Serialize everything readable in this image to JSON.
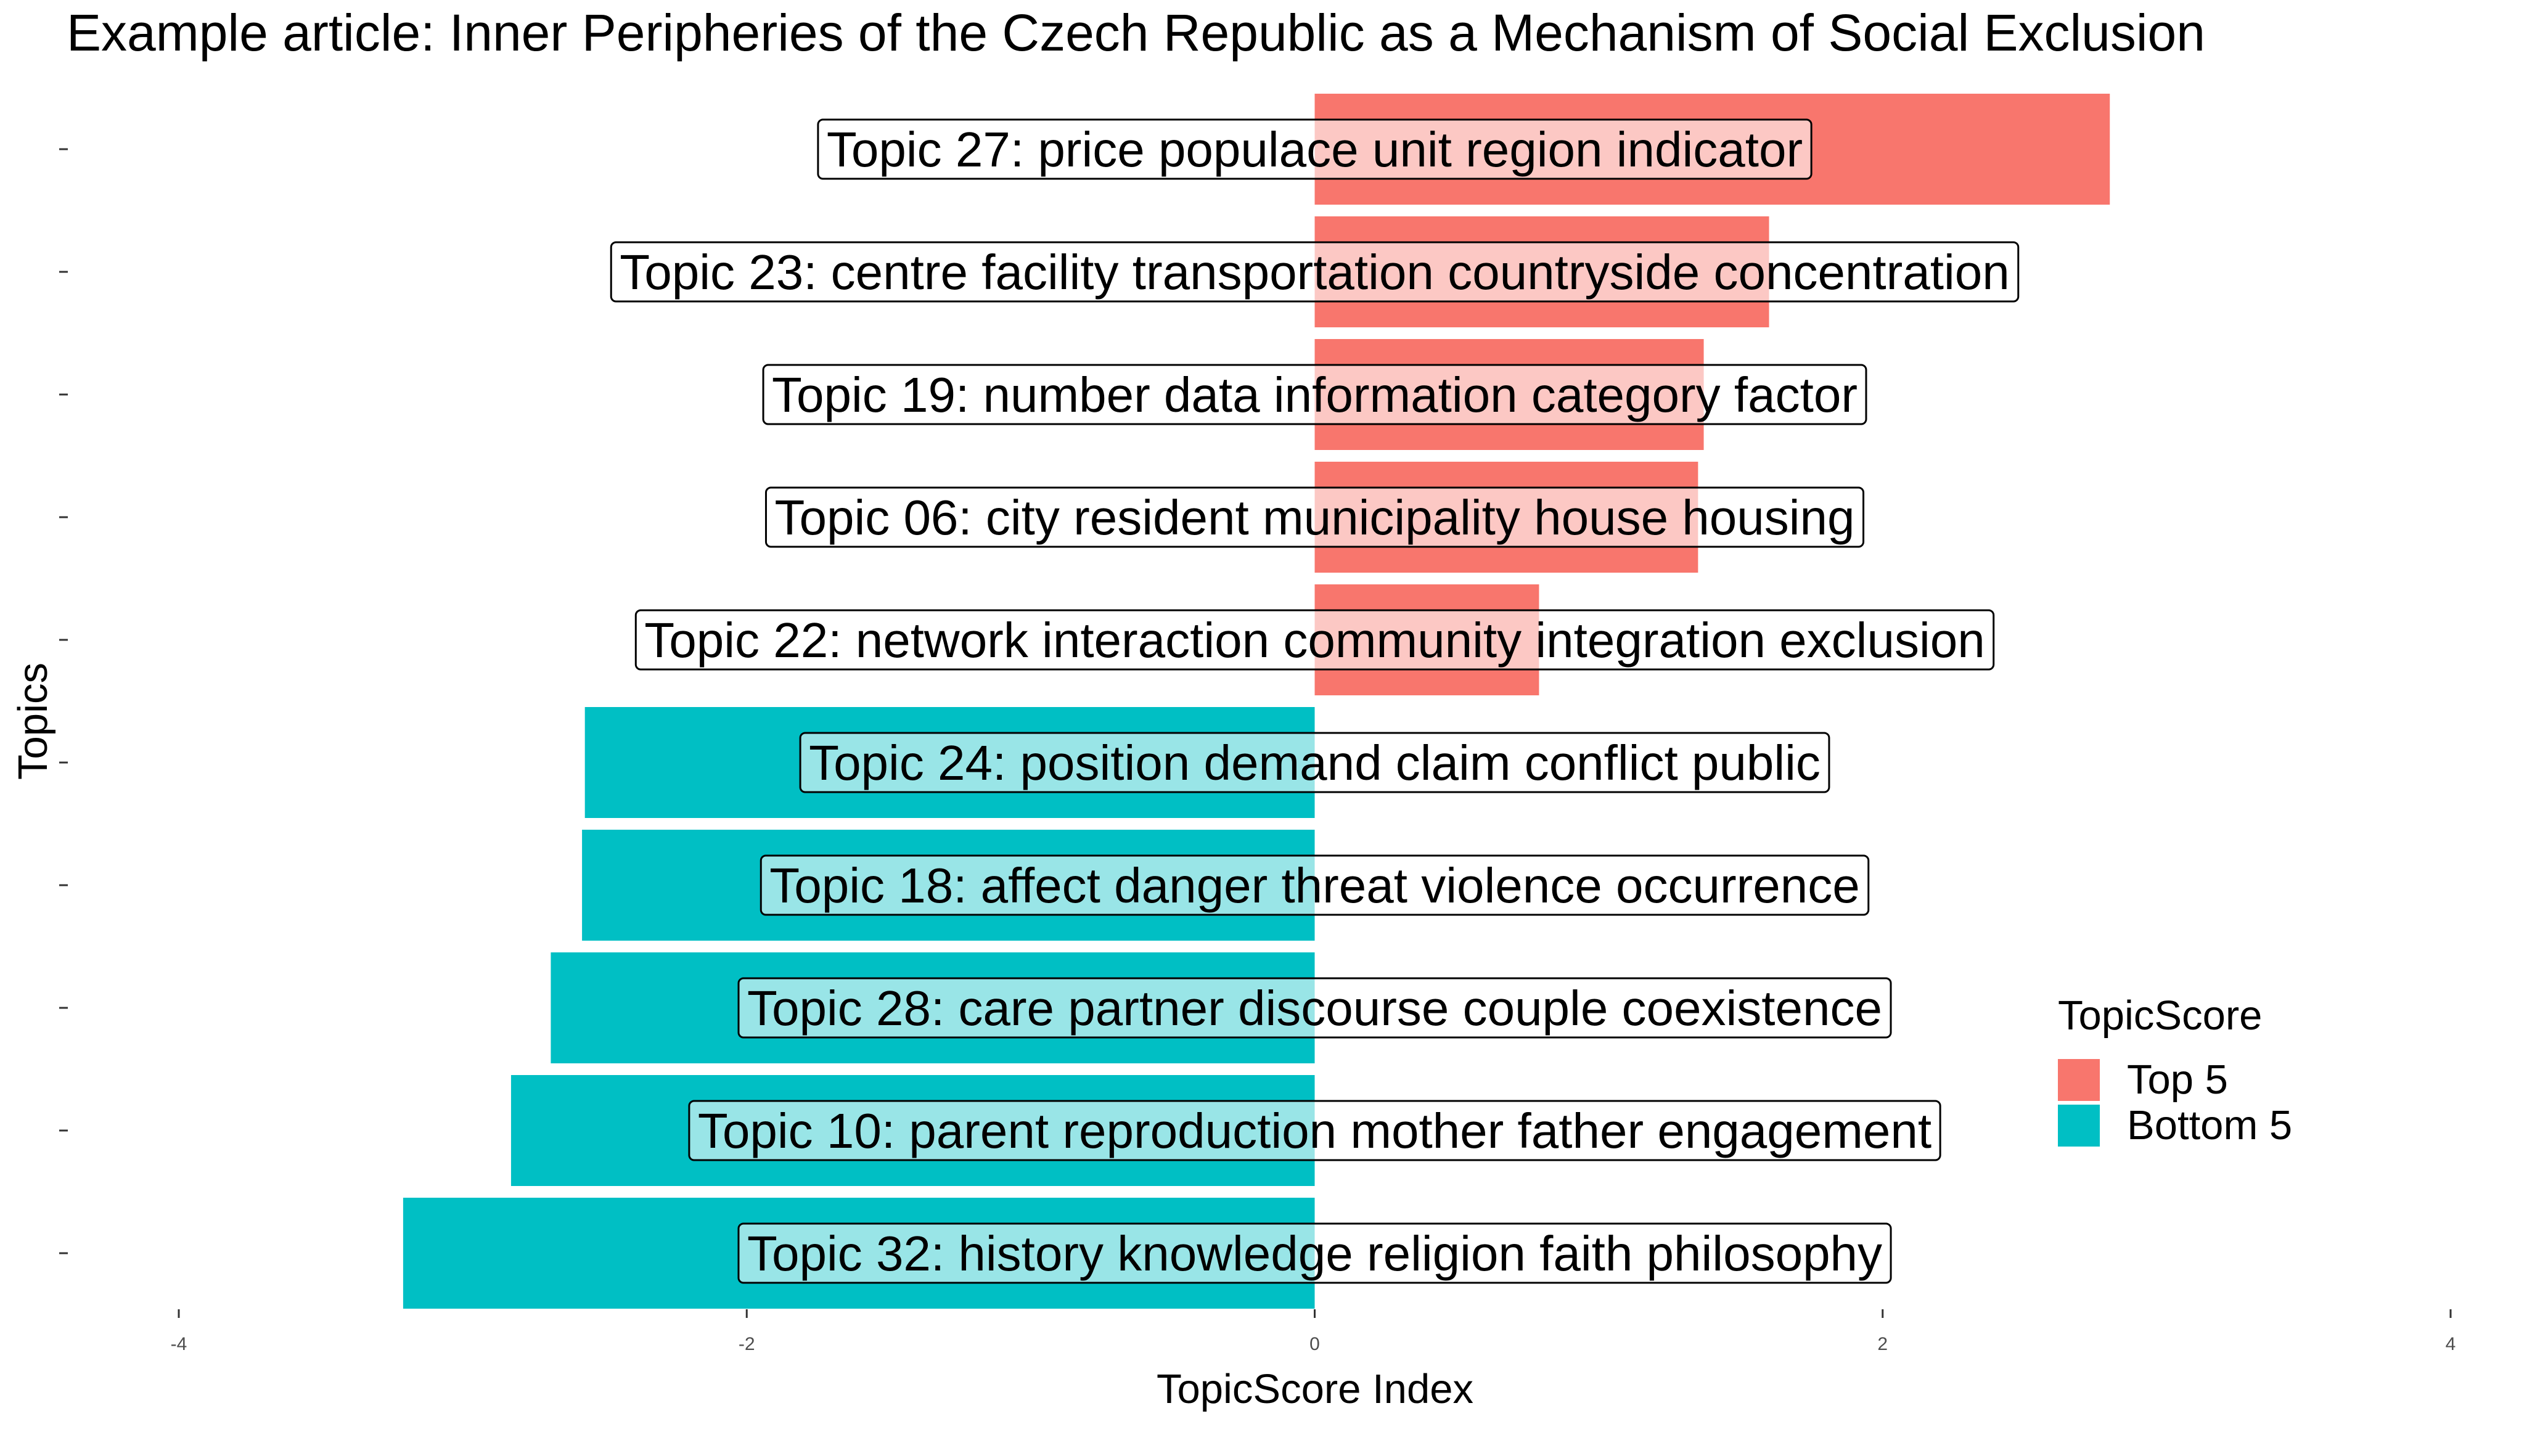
{
  "chart_data": {
    "type": "bar",
    "orientation": "horizontal",
    "title": "Example article: Inner Peripheries of the Czech Republic as a Mechanism of Social Exclusion",
    "xlabel": "TopicScore Index",
    "ylabel": "Topics",
    "xlim": [
      -4,
      4
    ],
    "xticks": [
      "-4",
      "-2",
      "0",
      "2",
      "4"
    ],
    "grid": false,
    "legend": {
      "title": "TopicScore",
      "placement": "right",
      "entries": [
        {
          "label": "Top 5",
          "color": "#F8766D"
        },
        {
          "label": "Bottom 5",
          "color": "#00BFC4"
        }
      ]
    },
    "bars": [
      {
        "label": "Topic 27: price populace unit region indicator",
        "value": 2.8,
        "group": "Top 5"
      },
      {
        "label": "Topic 23: centre facility transportation countryside concentration",
        "value": 1.6,
        "group": "Top 5"
      },
      {
        "label": "Topic 19: number data information category factor",
        "value": 1.37,
        "group": "Top 5"
      },
      {
        "label": "Topic 06: city resident municipality house housing",
        "value": 1.35,
        "group": "Top 5"
      },
      {
        "label": "Topic 22: network interaction community integration exclusion",
        "value": 0.79,
        "group": "Top 5"
      },
      {
        "label": "Topic 24: position demand claim conflict public",
        "value": -2.57,
        "group": "Bottom 5"
      },
      {
        "label": "Topic 18: affect danger threat violence occurrence",
        "value": -2.58,
        "group": "Bottom 5"
      },
      {
        "label": "Topic 28: care partner discourse couple coexistence",
        "value": -2.69,
        "group": "Bottom 5"
      },
      {
        "label": "Topic 10: parent reproduction mother father engagement",
        "value": -2.83,
        "group": "Bottom 5"
      },
      {
        "label": "Topic 32: history knowledge religion faith philosophy",
        "value": -3.21,
        "group": "Bottom 5"
      }
    ]
  }
}
